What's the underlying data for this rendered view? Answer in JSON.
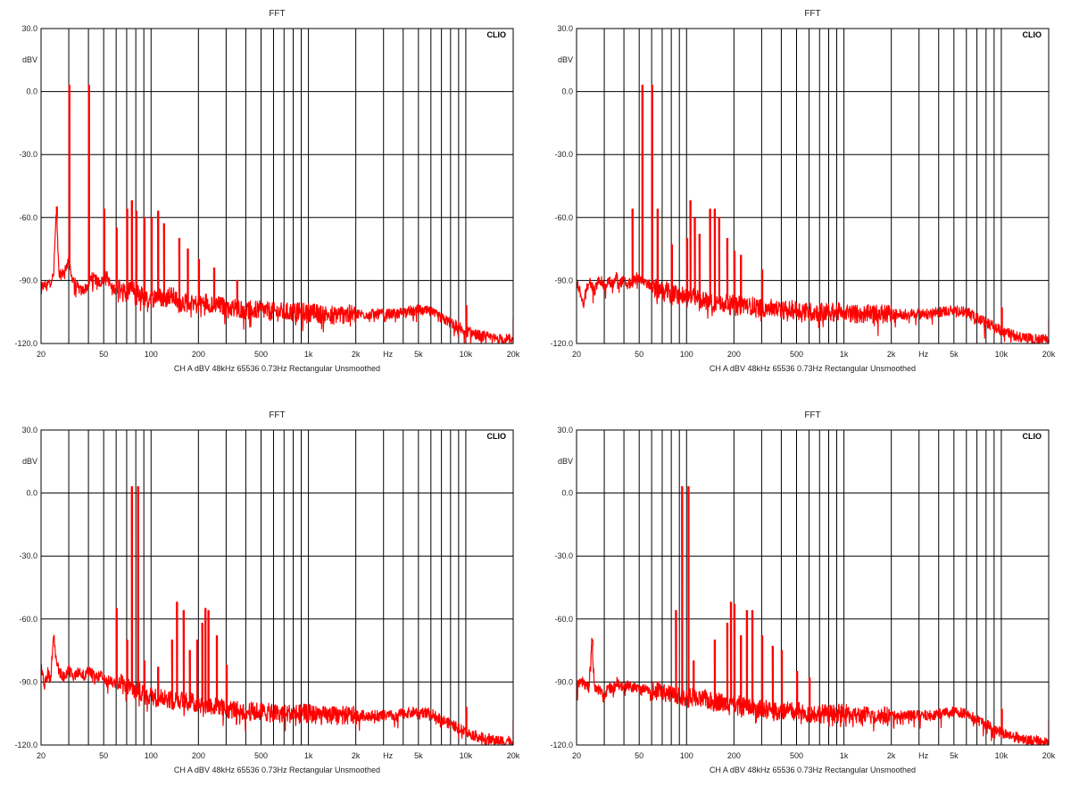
{
  "chart_data": [
    {
      "type": "line",
      "title": "FFT",
      "brand": "CLIO",
      "ylabel": "dBV",
      "xlabel": "Hz",
      "footer": "CH A   dBV   48kHz   65536   0.73Hz   Rectangular   Unsmoothed",
      "xscale": "log",
      "xlim": [
        20,
        20000
      ],
      "ylim": [
        -120,
        30
      ],
      "grid": true,
      "x_ticks": [
        20,
        50,
        100,
        200,
        500,
        1000,
        2000,
        5000,
        10000,
        20000
      ],
      "x_tick_labels": [
        "20",
        "50",
        "100",
        "200",
        "500",
        "1k",
        "2k",
        "5k",
        "10k",
        "20k"
      ],
      "y_ticks": [
        30,
        0,
        -30,
        -60,
        -90,
        -120
      ],
      "y_tick_labels": [
        "30.0",
        "0.0",
        "-30.0",
        "-60.0",
        "-90.0",
        "-120.0"
      ],
      "color": "#ff0000",
      "series": [
        {
          "x": [
            20,
            22,
            24,
            25,
            26,
            28,
            30,
            31,
            32,
            34,
            36,
            38,
            40,
            42,
            45,
            48,
            50,
            52,
            55,
            58,
            60,
            62,
            65,
            68,
            70,
            72,
            75,
            78,
            80,
            82,
            85,
            88,
            90,
            92,
            95,
            98,
            100,
            105,
            110,
            115,
            120,
            130,
            140,
            150,
            160,
            170,
            180,
            190,
            200,
            220,
            240,
            260,
            280,
            300,
            350,
            400,
            450,
            500,
            600,
            700,
            800,
            900,
            1000,
            1200,
            1500,
            2000,
            2500,
            3000,
            3500,
            4000,
            5000,
            6000,
            7000,
            8000,
            9000,
            10000,
            12000,
            14000,
            16000,
            18000,
            19500,
            20000
          ],
          "y": [
            -93,
            -92,
            -88,
            -56,
            -88,
            -86,
            -80,
            -88,
            -89,
            -93,
            -95,
            -94,
            -92,
            -88,
            -90,
            -91,
            -89,
            -87,
            -92,
            -94,
            -92,
            -93,
            -95,
            -95,
            -96,
            -95,
            -92,
            -95,
            -97,
            -96,
            -98,
            -96,
            -99,
            -98,
            -100,
            -97,
            -99,
            -98,
            -97,
            -98,
            -99,
            -97,
            -98,
            -101,
            -100,
            -101,
            -99,
            -101,
            -102,
            -100,
            -101,
            -102,
            -102,
            -103,
            -103,
            -104,
            -104,
            -104,
            -105,
            -105,
            -105,
            -105,
            -105,
            -106,
            -106,
            -106,
            -106,
            -106,
            -106,
            -105,
            -104,
            -105,
            -108,
            -110,
            -112,
            -114,
            -116,
            -117,
            -118,
            -118,
            -118,
            -119
          ],
          "peaks": [
            [
              30,
              3
            ],
            [
              40,
              3
            ],
            [
              25,
              -55
            ],
            [
              50,
              -56
            ],
            [
              60,
              -65
            ],
            [
              70,
              -56
            ],
            [
              75,
              -52
            ],
            [
              80,
              -57
            ],
            [
              90,
              -60
            ],
            [
              100,
              -60
            ],
            [
              110,
              -57
            ],
            [
              120,
              -63
            ],
            [
              150,
              -70
            ],
            [
              170,
              -75
            ],
            [
              200,
              -80
            ],
            [
              250,
              -84
            ],
            [
              350,
              -90
            ],
            [
              10000,
              -102
            ],
            [
              20000,
              -108
            ]
          ]
        }
      ]
    },
    {
      "type": "line",
      "title": "FFT",
      "brand": "CLIO",
      "ylabel": "dBV",
      "xlabel": "Hz",
      "footer": "CH A   dBV   48kHz   65536   0.73Hz   Rectangular   Unsmoothed",
      "xscale": "log",
      "xlim": [
        20,
        20000
      ],
      "ylim": [
        -120,
        30
      ],
      "grid": true,
      "x_ticks": [
        20,
        50,
        100,
        200,
        500,
        1000,
        2000,
        5000,
        10000,
        20000
      ],
      "x_tick_labels": [
        "20",
        "50",
        "100",
        "200",
        "500",
        "1k",
        "2k",
        "5k",
        "10k",
        "20k"
      ],
      "y_ticks": [
        30,
        0,
        -30,
        -60,
        -90,
        -120
      ],
      "y_tick_labels": [
        "30.0",
        "0.0",
        "-30.0",
        "-60.0",
        "-90.0",
        "-120.0"
      ],
      "color": "#ff0000",
      "series": [
        {
          "x": [
            20,
            22,
            24,
            26,
            28,
            30,
            32,
            34,
            36,
            38,
            40,
            42,
            45,
            48,
            50,
            52,
            55,
            58,
            60,
            62,
            65,
            68,
            70,
            75,
            80,
            85,
            90,
            95,
            100,
            110,
            120,
            130,
            140,
            150,
            160,
            170,
            180,
            190,
            200,
            220,
            240,
            260,
            280,
            300,
            350,
            400,
            450,
            500,
            600,
            700,
            800,
            900,
            1000,
            1200,
            1500,
            2000,
            2500,
            3000,
            3500,
            4000,
            5000,
            6000,
            7000,
            8000,
            9000,
            10000,
            12000,
            14000,
            16000,
            18000,
            19500,
            20000
          ],
          "y": [
            -90,
            -101,
            -90,
            -95,
            -89,
            -93,
            -90,
            -92,
            -88,
            -91,
            -90,
            -92,
            -91,
            -89,
            -88,
            -90,
            -91,
            -92,
            -93,
            -92,
            -95,
            -94,
            -96,
            -95,
            -97,
            -96,
            -98,
            -97,
            -99,
            -98,
            -99,
            -100,
            -99,
            -101,
            -100,
            -101,
            -100,
            -102,
            -101,
            -102,
            -101,
            -102,
            -103,
            -103,
            -103,
            -104,
            -104,
            -104,
            -105,
            -105,
            -105,
            -105,
            -105,
            -106,
            -106,
            -106,
            -106,
            -106,
            -106,
            -105,
            -104,
            -105,
            -108,
            -110,
            -112,
            -114,
            -116,
            -117,
            -118,
            -118,
            -118,
            -119
          ],
          "peaks": [
            [
              52,
              3
            ],
            [
              60,
              3
            ],
            [
              45,
              -56
            ],
            [
              65,
              -56
            ],
            [
              80,
              -73
            ],
            [
              100,
              -70
            ],
            [
              105,
              -52
            ],
            [
              112,
              -60
            ],
            [
              120,
              -68
            ],
            [
              140,
              -56
            ],
            [
              150,
              -56
            ],
            [
              160,
              -60
            ],
            [
              180,
              -70
            ],
            [
              200,
              -76
            ],
            [
              220,
              -78
            ],
            [
              300,
              -85
            ],
            [
              10000,
              -103
            ],
            [
              20000,
              -108
            ]
          ]
        }
      ]
    },
    {
      "type": "line",
      "title": "FFT",
      "brand": "CLIO",
      "ylabel": "dBV",
      "xlabel": "Hz",
      "footer": "CH A   dBV   48kHz   65536   0.73Hz   Rectangular   Unsmoothed",
      "xscale": "log",
      "xlim": [
        20,
        20000
      ],
      "ylim": [
        -120,
        30
      ],
      "grid": true,
      "x_ticks": [
        20,
        50,
        100,
        200,
        500,
        1000,
        2000,
        5000,
        10000,
        20000
      ],
      "x_tick_labels": [
        "20",
        "50",
        "100",
        "200",
        "500",
        "1k",
        "2k",
        "5k",
        "10k",
        "20k"
      ],
      "y_ticks": [
        30,
        0,
        -30,
        -60,
        -90,
        -120
      ],
      "y_tick_labels": [
        "30.0",
        "0.0",
        "-30.0",
        "-60.0",
        "-90.0",
        "-120.0"
      ],
      "color": "#ff0000",
      "series": [
        {
          "x": [
            20,
            21,
            22,
            23,
            24,
            25,
            26,
            28,
            30,
            32,
            34,
            36,
            38,
            40,
            42,
            45,
            48,
            50,
            52,
            55,
            58,
            60,
            62,
            65,
            68,
            70,
            72,
            75,
            80,
            85,
            90,
            95,
            100,
            110,
            120,
            130,
            140,
            150,
            160,
            170,
            180,
            190,
            200,
            220,
            240,
            260,
            280,
            300,
            350,
            400,
            450,
            500,
            600,
            700,
            800,
            900,
            1000,
            1200,
            1500,
            2000,
            2500,
            3000,
            3500,
            4000,
            5000,
            6000,
            7000,
            8000,
            9000,
            10000,
            12000,
            14000,
            16000,
            18000,
            19500,
            20000
          ],
          "y": [
            -82,
            -92,
            -85,
            -90,
            -66,
            -80,
            -85,
            -88,
            -84,
            -88,
            -85,
            -86,
            -87,
            -85,
            -86,
            -88,
            -87,
            -89,
            -90,
            -89,
            -91,
            -88,
            -92,
            -90,
            -93,
            -91,
            -93,
            -92,
            -95,
            -94,
            -96,
            -97,
            -96,
            -98,
            -97,
            -98,
            -99,
            -98,
            -99,
            -100,
            -99,
            -101,
            -100,
            -101,
            -101,
            -102,
            -102,
            -103,
            -103,
            -104,
            -104,
            -104,
            -105,
            -105,
            -105,
            -105,
            -105,
            -106,
            -106,
            -106,
            -106,
            -106,
            -106,
            -105,
            -104,
            -105,
            -108,
            -110,
            -112,
            -114,
            -116,
            -117,
            -118,
            -118,
            -118,
            -119
          ],
          "peaks": [
            [
              75,
              3
            ],
            [
              82,
              3
            ],
            [
              60,
              -55
            ],
            [
              70,
              -70
            ],
            [
              90,
              -80
            ],
            [
              110,
              -83
            ],
            [
              135,
              -70
            ],
            [
              145,
              -52
            ],
            [
              160,
              -56
            ],
            [
              175,
              -75
            ],
            [
              195,
              -70
            ],
            [
              210,
              -62
            ],
            [
              220,
              -55
            ],
            [
              230,
              -56
            ],
            [
              260,
              -68
            ],
            [
              300,
              -82
            ],
            [
              10000,
              -102
            ],
            [
              20000,
              -108
            ]
          ]
        }
      ]
    },
    {
      "type": "line",
      "title": "FFT",
      "brand": "CLIO",
      "ylabel": "dBV",
      "xlabel": "Hz",
      "footer": "CH A   dBV   48kHz   65536   0.73Hz   Rectangular   Unsmoothed",
      "xscale": "log",
      "xlim": [
        20,
        20000
      ],
      "ylim": [
        -120,
        30
      ],
      "grid": true,
      "x_ticks": [
        20,
        50,
        100,
        200,
        500,
        1000,
        2000,
        5000,
        10000,
        20000
      ],
      "x_tick_labels": [
        "20",
        "50",
        "100",
        "200",
        "500",
        "1k",
        "2k",
        "5k",
        "10k",
        "20k"
      ],
      "y_ticks": [
        30,
        0,
        -30,
        -60,
        -90,
        -120
      ],
      "y_tick_labels": [
        "30.0",
        "0.0",
        "-30.0",
        "-60.0",
        "-90.0",
        "-120.0"
      ],
      "color": "#ff0000",
      "series": [
        {
          "x": [
            20,
            22,
            24,
            25,
            26,
            28,
            30,
            32,
            34,
            36,
            38,
            40,
            42,
            45,
            48,
            50,
            52,
            55,
            58,
            60,
            62,
            65,
            68,
            70,
            75,
            80,
            85,
            90,
            95,
            100,
            110,
            120,
            130,
            140,
            150,
            160,
            170,
            180,
            190,
            200,
            220,
            240,
            260,
            280,
            300,
            350,
            400,
            450,
            500,
            600,
            700,
            800,
            900,
            1000,
            1200,
            1500,
            2000,
            2500,
            3000,
            3500,
            4000,
            5000,
            6000,
            7000,
            8000,
            9000,
            10000,
            12000,
            14000,
            16000,
            18000,
            19500,
            20000
          ],
          "y": [
            -92,
            -90,
            -93,
            -70,
            -92,
            -94,
            -98,
            -92,
            -94,
            -90,
            -92,
            -93,
            -91,
            -93,
            -92,
            -94,
            -93,
            -92,
            -94,
            -93,
            -95,
            -94,
            -93,
            -96,
            -95,
            -96,
            -97,
            -96,
            -97,
            -98,
            -97,
            -99,
            -98,
            -99,
            -100,
            -99,
            -100,
            -101,
            -100,
            -101,
            -101,
            -102,
            -102,
            -103,
            -103,
            -103,
            -104,
            -104,
            -104,
            -105,
            -105,
            -105,
            -105,
            -105,
            -106,
            -106,
            -106,
            -106,
            -106,
            -106,
            -105,
            -104,
            -105,
            -108,
            -110,
            -112,
            -114,
            -116,
            -117,
            -118,
            -118,
            -118,
            -119
          ],
          "peaks": [
            [
              93,
              3
            ],
            [
              102,
              3
            ],
            [
              25,
              -70
            ],
            [
              85,
              -56
            ],
            [
              110,
              -80
            ],
            [
              150,
              -70
            ],
            [
              180,
              -62
            ],
            [
              190,
              -52
            ],
            [
              200,
              -53
            ],
            [
              220,
              -68
            ],
            [
              240,
              -56
            ],
            [
              260,
              -56
            ],
            [
              300,
              -68
            ],
            [
              350,
              -73
            ],
            [
              400,
              -75
            ],
            [
              500,
              -85
            ],
            [
              600,
              -88
            ],
            [
              10000,
              -103
            ],
            [
              20000,
              -108
            ]
          ]
        }
      ]
    }
  ]
}
